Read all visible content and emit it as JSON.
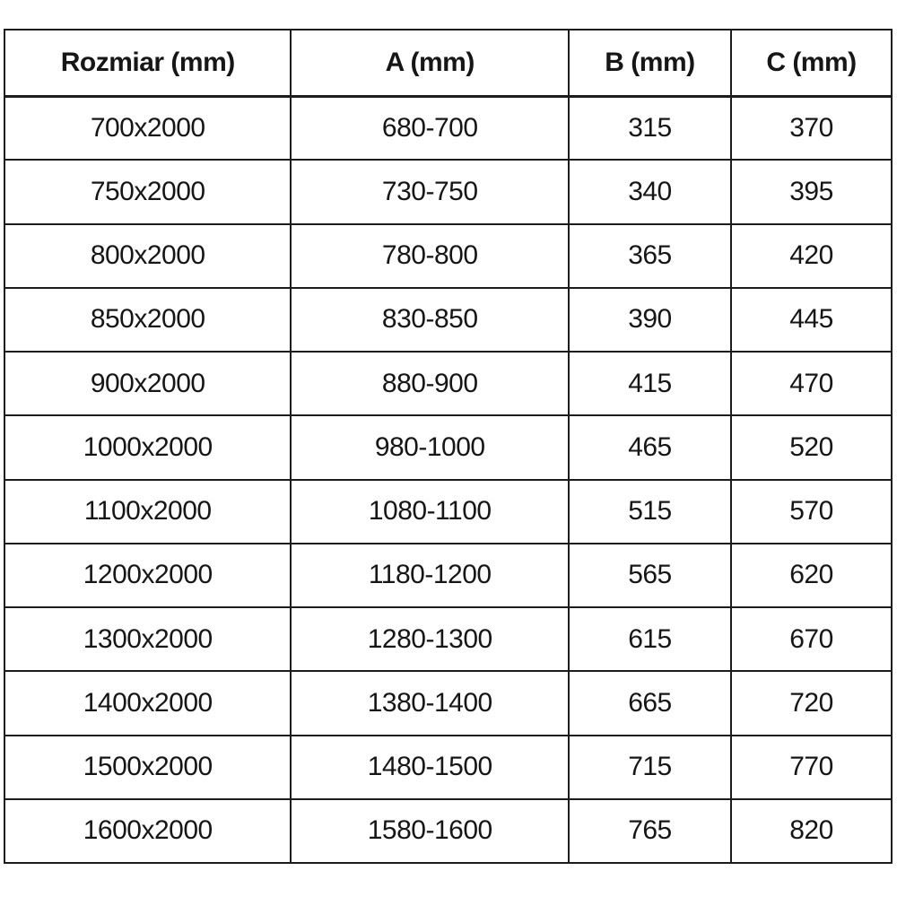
{
  "colors": {
    "background": "#ffffff",
    "border": "#1c1c1c",
    "text": "#161616"
  },
  "table": {
    "headers": [
      "Rozmiar (mm)",
      "A (mm)",
      "B (mm)",
      "C (mm)"
    ],
    "rows": [
      [
        "700x2000",
        "680-700",
        "315",
        "370"
      ],
      [
        "750x2000",
        "730-750",
        "340",
        "395"
      ],
      [
        "800x2000",
        "780-800",
        "365",
        "420"
      ],
      [
        "850x2000",
        "830-850",
        "390",
        "445"
      ],
      [
        "900x2000",
        "880-900",
        "415",
        "470"
      ],
      [
        "1000x2000",
        "980-1000",
        "465",
        "520"
      ],
      [
        "1100x2000",
        "1080-1100",
        "515",
        "570"
      ],
      [
        "1200x2000",
        "1180-1200",
        "565",
        "620"
      ],
      [
        "1300x2000",
        "1280-1300",
        "615",
        "670"
      ],
      [
        "1400x2000",
        "1380-1400",
        "665",
        "720"
      ],
      [
        "1500x2000",
        "1480-1500",
        "715",
        "770"
      ],
      [
        "1600x2000",
        "1580-1600",
        "765",
        "820"
      ]
    ]
  }
}
